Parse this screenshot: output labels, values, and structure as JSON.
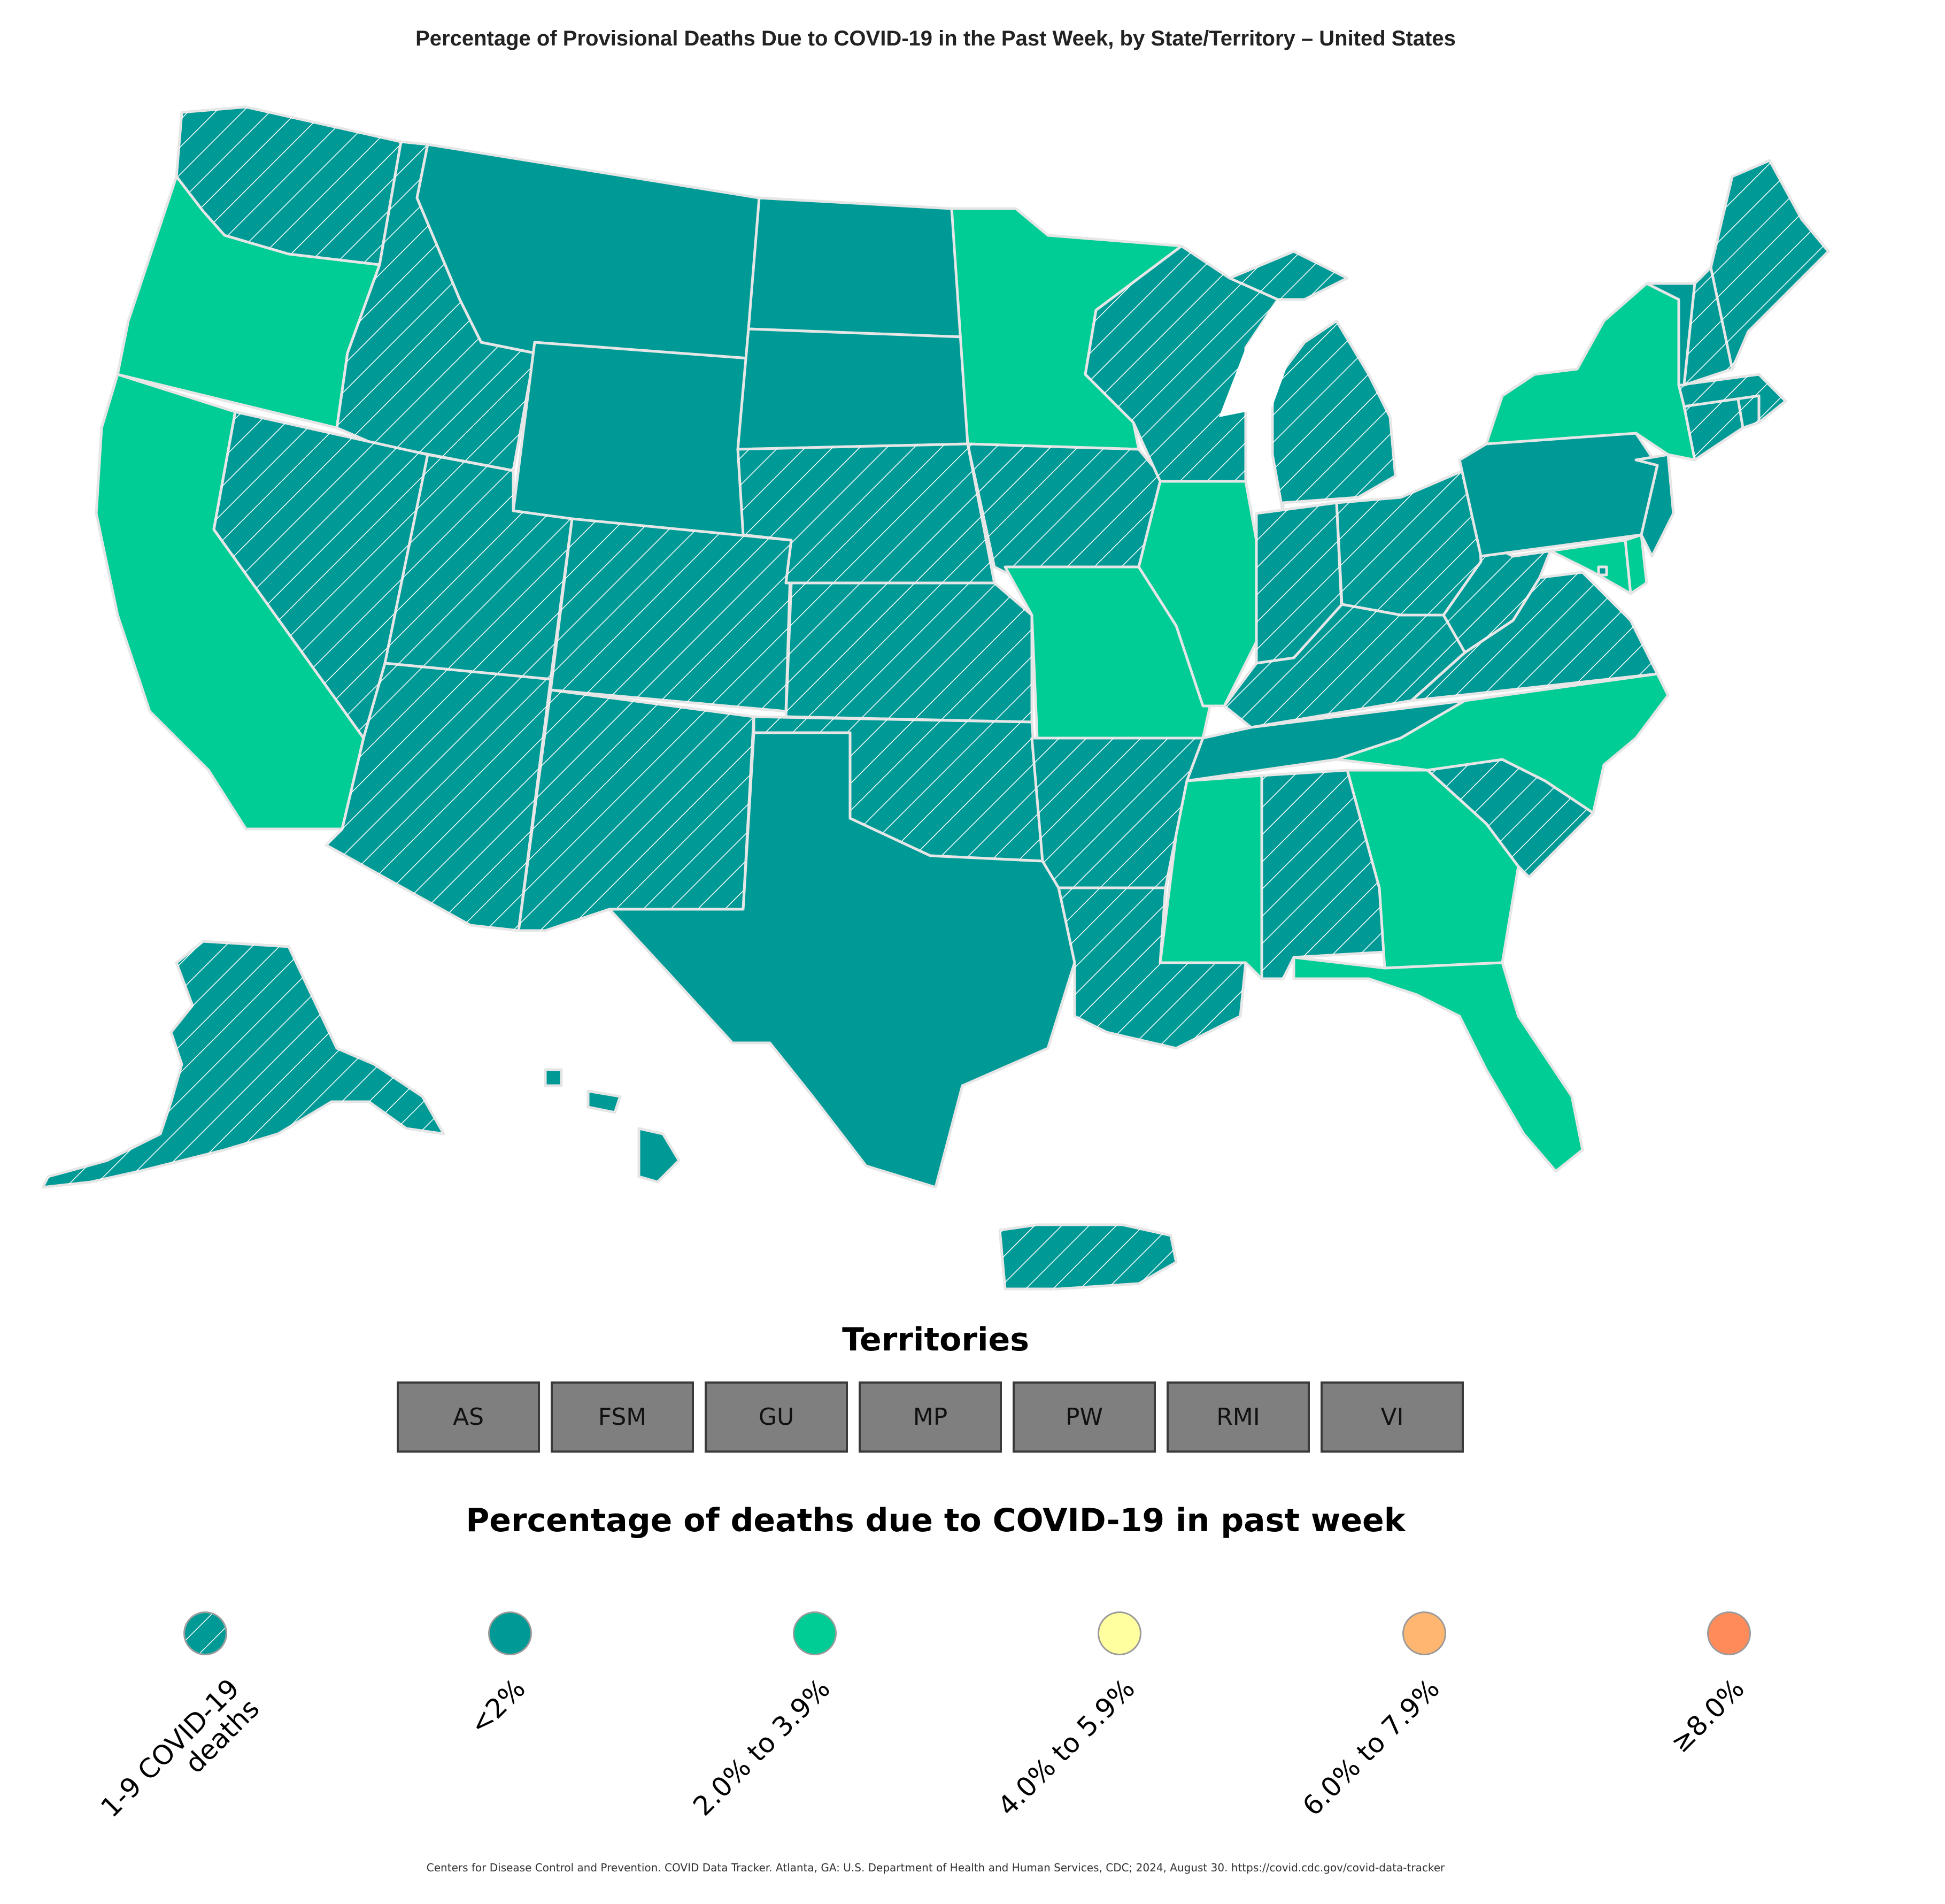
{
  "title": "Percentage of Provisional Deaths Due to COVID-19 in the Past Week, by State/Territory – United States",
  "colors": {
    "lt2": "#009a96",
    "c2to39": "#00cc95",
    "c4to59": "#ffff9f",
    "c6to79": "#ffb670",
    "ge8": "#ff8b5b",
    "territory_gray": "#7f7f7f",
    "border": "#e6e6e6"
  },
  "map": {
    "states": [
      {
        "abbr": "WA",
        "category": "lt2",
        "hatched": true
      },
      {
        "abbr": "OR",
        "category": "2to3.9",
        "hatched": false
      },
      {
        "abbr": "CA",
        "category": "2to3.9",
        "hatched": false
      },
      {
        "abbr": "ID",
        "category": "lt2",
        "hatched": true
      },
      {
        "abbr": "NV",
        "category": "lt2",
        "hatched": true
      },
      {
        "abbr": "MT",
        "category": "lt2",
        "hatched": false
      },
      {
        "abbr": "WY",
        "category": "lt2",
        "hatched": false
      },
      {
        "abbr": "UT",
        "category": "lt2",
        "hatched": true
      },
      {
        "abbr": "AZ",
        "category": "lt2",
        "hatched": true
      },
      {
        "abbr": "CO",
        "category": "lt2",
        "hatched": true
      },
      {
        "abbr": "NM",
        "category": "lt2",
        "hatched": true
      },
      {
        "abbr": "ND",
        "category": "lt2",
        "hatched": false
      },
      {
        "abbr": "SD",
        "category": "lt2",
        "hatched": false
      },
      {
        "abbr": "NE",
        "category": "lt2",
        "hatched": true
      },
      {
        "abbr": "KS",
        "category": "lt2",
        "hatched": true
      },
      {
        "abbr": "OK",
        "category": "lt2",
        "hatched": true
      },
      {
        "abbr": "TX",
        "category": "lt2",
        "hatched": false
      },
      {
        "abbr": "MN",
        "category": "2to3.9",
        "hatched": false
      },
      {
        "abbr": "IA",
        "category": "lt2",
        "hatched": true
      },
      {
        "abbr": "MO",
        "category": "2to3.9",
        "hatched": false
      },
      {
        "abbr": "AR",
        "category": "lt2",
        "hatched": true
      },
      {
        "abbr": "LA",
        "category": "lt2",
        "hatched": true
      },
      {
        "abbr": "WI",
        "category": "lt2",
        "hatched": true
      },
      {
        "abbr": "IL",
        "category": "2to3.9",
        "hatched": false
      },
      {
        "abbr": "MI",
        "category": "lt2",
        "hatched": true
      },
      {
        "abbr": "IN",
        "category": "lt2",
        "hatched": true
      },
      {
        "abbr": "OH",
        "category": "lt2",
        "hatched": true
      },
      {
        "abbr": "KY",
        "category": "lt2",
        "hatched": true
      },
      {
        "abbr": "TN",
        "category": "lt2",
        "hatched": false
      },
      {
        "abbr": "MS",
        "category": "2to3.9",
        "hatched": false
      },
      {
        "abbr": "AL",
        "category": "lt2",
        "hatched": true
      },
      {
        "abbr": "GA",
        "category": "2to3.9",
        "hatched": false
      },
      {
        "abbr": "FL",
        "category": "2to3.9",
        "hatched": false
      },
      {
        "abbr": "SC",
        "category": "lt2",
        "hatched": true
      },
      {
        "abbr": "NC",
        "category": "2to3.9",
        "hatched": false
      },
      {
        "abbr": "VA",
        "category": "lt2",
        "hatched": true
      },
      {
        "abbr": "WV",
        "category": "lt2",
        "hatched": true
      },
      {
        "abbr": "MD",
        "category": "2to3.9",
        "hatched": false
      },
      {
        "abbr": "DE",
        "category": "2to3.9",
        "hatched": false
      },
      {
        "abbr": "PA",
        "category": "lt2",
        "hatched": false
      },
      {
        "abbr": "NJ",
        "category": "lt2",
        "hatched": false
      },
      {
        "abbr": "NY",
        "category": "2to3.9",
        "hatched": false
      },
      {
        "abbr": "CT",
        "category": "lt2",
        "hatched": true
      },
      {
        "abbr": "RI",
        "category": "lt2",
        "hatched": true
      },
      {
        "abbr": "MA",
        "category": "lt2",
        "hatched": true
      },
      {
        "abbr": "VT",
        "category": "lt2",
        "hatched": false
      },
      {
        "abbr": "NH",
        "category": "lt2",
        "hatched": true
      },
      {
        "abbr": "ME",
        "category": "lt2",
        "hatched": true
      },
      {
        "abbr": "AK",
        "category": "lt2",
        "hatched": true
      },
      {
        "abbr": "HI",
        "category": "lt2",
        "hatched": false
      },
      {
        "abbr": "PR",
        "category": "lt2",
        "hatched": true
      },
      {
        "abbr": "DC",
        "category": "lt2",
        "hatched": false
      }
    ]
  },
  "territories": {
    "title": "Territories",
    "buttons": [
      "AS",
      "FSM",
      "GU",
      "MP",
      "PW",
      "RMI",
      "VI"
    ]
  },
  "legend": {
    "title": "Percentage of deaths due to COVID-19 in past week",
    "items": [
      {
        "label": "1-9 COVID-19 deaths",
        "color": "#009a96",
        "hatched": true
      },
      {
        "label": "<2%",
        "color": "#009a96",
        "hatched": false
      },
      {
        "label": "2.0% to 3.9%",
        "color": "#00cc95",
        "hatched": false
      },
      {
        "label": "4.0% to 5.9%",
        "color": "#ffff9f",
        "hatched": false
      },
      {
        "label": "6.0% to 7.9%",
        "color": "#ffb670",
        "hatched": false
      },
      {
        "label": "≥8.0%",
        "color": "#ff8b5b",
        "hatched": false
      }
    ]
  },
  "citation": "Centers for Disease Control and Prevention. COVID Data Tracker. Atlanta, GA: U.S. Department of Health and Human Services, CDC; 2024, August 30. https://covid.cdc.gov/covid-data-tracker"
}
